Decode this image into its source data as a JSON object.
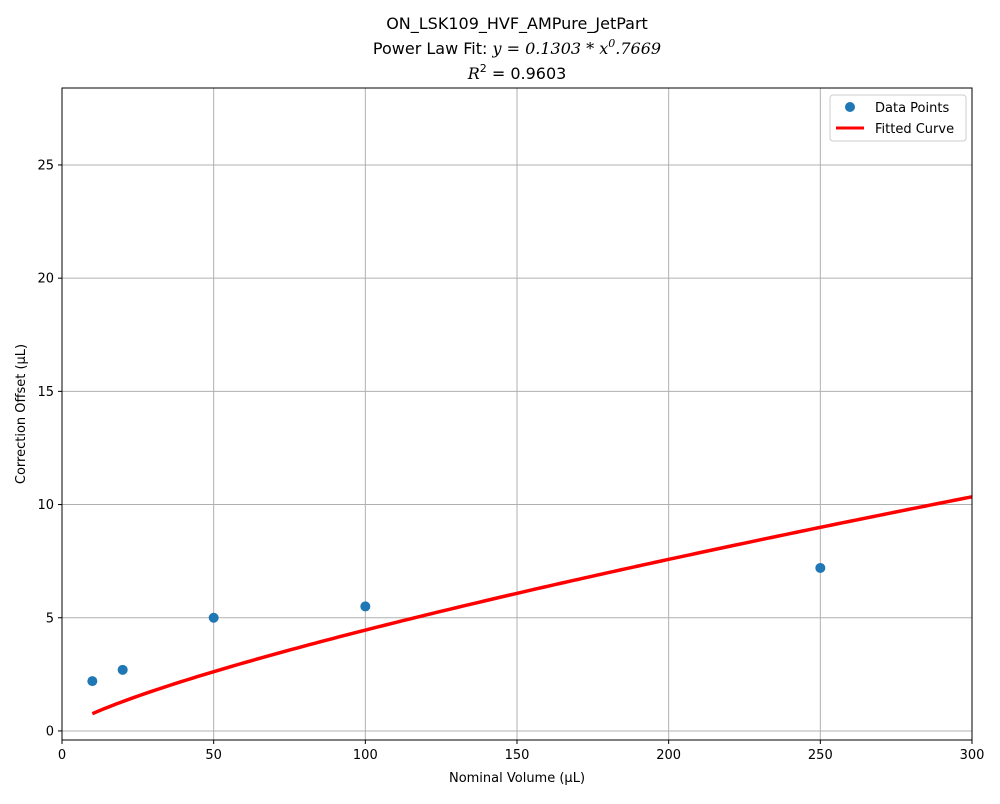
{
  "chart_data": {
    "type": "scatter",
    "title": "ON_LSK109_HVF_AMPure_JetPart",
    "subtitle_prefix": "Power Law Fit: ",
    "subtitle_equation": "y = 0.1303 * x",
    "subtitle_exponent": "0",
    "subtitle_suffix": ".7669",
    "r2_label": "R",
    "r2_power": "2",
    "r2_value": " = 0.9603",
    "xlabel": "Nominal Volume (µL)",
    "ylabel": "Correction Offset (µL)",
    "xlim": [
      0,
      300
    ],
    "ylim": [
      -0.4,
      28.4
    ],
    "xticks": [
      0,
      50,
      100,
      150,
      200,
      250,
      300
    ],
    "yticks": [
      0,
      5,
      10,
      15,
      20,
      25
    ],
    "grid": true,
    "legend_position": "top-right",
    "series": [
      {
        "name": "Data Points",
        "kind": "scatter",
        "color": "#1f77b4",
        "points": [
          {
            "x": 10,
            "y": 2.2
          },
          {
            "x": 20,
            "y": 2.7
          },
          {
            "x": 50,
            "y": 5.0
          },
          {
            "x": 100,
            "y": 5.5
          },
          {
            "x": 250,
            "y": 7.2
          }
        ]
      },
      {
        "name": "Fitted Curve",
        "kind": "line",
        "color": "#ff0000",
        "model": "power",
        "a": 0.1303,
        "b": 0.7669,
        "x_start": 10,
        "x_end": 300
      }
    ]
  }
}
